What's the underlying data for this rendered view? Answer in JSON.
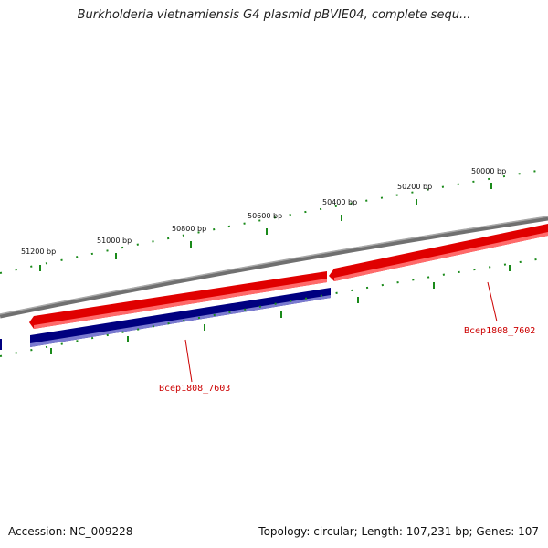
{
  "title": "Burkholderia vietnamiensis G4 plasmid pBVIE04, complete sequ...",
  "footer": {
    "accession": "Accession: NC_009228",
    "summary": "Topology: circular; Length: 107,231 bp; Genes: 107"
  },
  "colors": {
    "forward_gene": "#e00000",
    "forward_gene_highlight": "#ff6a6a",
    "reverse_gene": "#000080",
    "reverse_gene_highlight": "#7a7ad0",
    "backbone": "#808080",
    "tick": "#1a8a1a",
    "gene_label": "#cc0000"
  },
  "ticks": [
    "51200 bp",
    "51000 bp",
    "50800 bp",
    "50600 bp",
    "50400 bp",
    "50200 bp",
    "50000 bp"
  ],
  "genes": [
    {
      "name": "Bcep1808_7603",
      "strand": "reverse"
    },
    {
      "name": "Bcep1808_7602",
      "strand": "forward"
    }
  ]
}
